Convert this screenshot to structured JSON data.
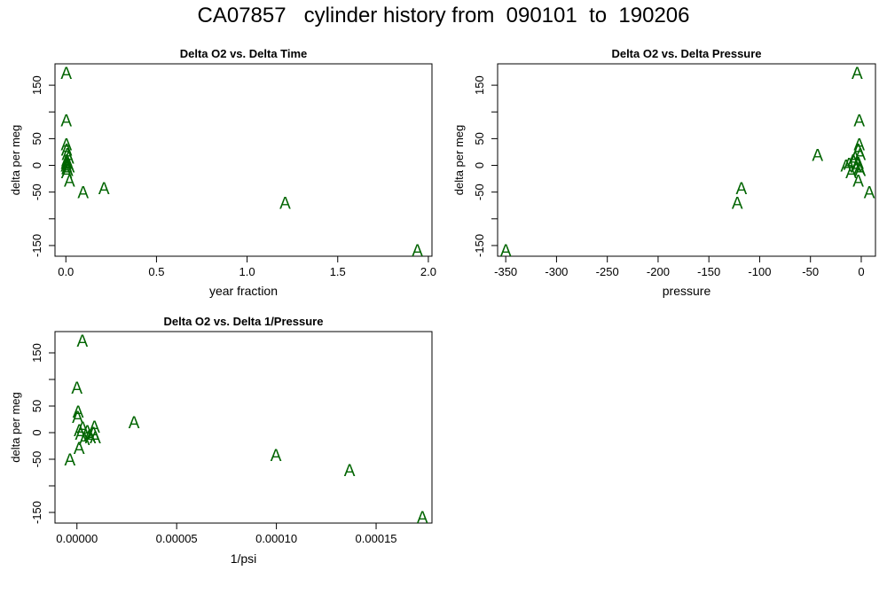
{
  "page": {
    "title": "CA07857   cylinder history from  090101  to  190206"
  },
  "colors": {
    "marker": "#006400",
    "axis": "#000000",
    "background": "#ffffff"
  },
  "chart_data": [
    {
      "type": "scatter",
      "title": "Delta O2 vs. Delta Time",
      "xlabel": "year fraction",
      "ylabel": "delta per meg",
      "marker": "A",
      "xlim": [
        -0.06,
        2.02
      ],
      "ylim": [
        -170,
        190
      ],
      "xticks": [
        0.0,
        0.5,
        1.0,
        1.5,
        2.0
      ],
      "xtick_labels": [
        "0.0",
        "0.5",
        "1.0",
        "1.5",
        "2.0"
      ],
      "yticks": [
        -150,
        -50,
        0,
        50,
        150
      ],
      "ytick_labels": [
        "-150",
        "-50",
        "0",
        "50",
        "150"
      ],
      "ytick_minor": [
        -100,
        100
      ],
      "points": [
        {
          "x": 0.002,
          "y": 173
        },
        {
          "x": 0.002,
          "y": 85
        },
        {
          "x": 0.003,
          "y": 40
        },
        {
          "x": 0.004,
          "y": 30
        },
        {
          "x": 0.008,
          "y": 22
        },
        {
          "x": 0.015,
          "y": 15
        },
        {
          "x": 0.005,
          "y": 10
        },
        {
          "x": 0.003,
          "y": 5
        },
        {
          "x": 0.012,
          "y": 3
        },
        {
          "x": 0.002,
          "y": 0
        },
        {
          "x": 0.018,
          "y": -2
        },
        {
          "x": 0.006,
          "y": -5
        },
        {
          "x": 0.01,
          "y": -8
        },
        {
          "x": 0.004,
          "y": -12
        },
        {
          "x": 0.02,
          "y": -28
        },
        {
          "x": 0.095,
          "y": -50
        },
        {
          "x": 0.21,
          "y": -42
        },
        {
          "x": 1.21,
          "y": -70
        },
        {
          "x": 1.94,
          "y": -158
        }
      ]
    },
    {
      "type": "scatter",
      "title": "Delta O2 vs. Delta Pressure",
      "xlabel": "pressure",
      "ylabel": "delta per meg",
      "marker": "A",
      "xlim": [
        -358,
        14
      ],
      "ylim": [
        -170,
        190
      ],
      "xticks": [
        -350,
        -300,
        -250,
        -200,
        -150,
        -100,
        -50,
        0
      ],
      "xtick_labels": [
        "-350",
        "-300",
        "-250",
        "-200",
        "-150",
        "-100",
        "-50",
        "0"
      ],
      "yticks": [
        -150,
        -50,
        0,
        50,
        150
      ],
      "ytick_labels": [
        "-150",
        "-50",
        "0",
        "50",
        "150"
      ],
      "ytick_minor": [
        -100,
        100
      ],
      "points": [
        {
          "x": -4,
          "y": 173
        },
        {
          "x": -2,
          "y": 85
        },
        {
          "x": -2,
          "y": 40
        },
        {
          "x": -3,
          "y": 30
        },
        {
          "x": -1,
          "y": 22
        },
        {
          "x": -6,
          "y": 15
        },
        {
          "x": -8,
          "y": 10
        },
        {
          "x": -3,
          "y": 5
        },
        {
          "x": -12,
          "y": 3
        },
        {
          "x": -15,
          "y": 0
        },
        {
          "x": -5,
          "y": -2
        },
        {
          "x": -2,
          "y": -5
        },
        {
          "x": -1,
          "y": -8
        },
        {
          "x": -10,
          "y": -12
        },
        {
          "x": -3,
          "y": -28
        },
        {
          "x": 8,
          "y": -50
        },
        {
          "x": -118,
          "y": -42
        },
        {
          "x": -122,
          "y": -70
        },
        {
          "x": -350,
          "y": -158
        },
        {
          "x": -43,
          "y": 20
        }
      ]
    },
    {
      "type": "scatter",
      "title": "Delta O2 vs. Delta 1/Pressure",
      "xlabel": "1/psi",
      "ylabel": "delta per meg",
      "marker": "A",
      "xlim": [
        -1.1e-05,
        0.000178
      ],
      "ylim": [
        -170,
        190
      ],
      "xticks": [
        0.0,
        5e-05,
        0.0001,
        0.00015
      ],
      "xtick_labels": [
        "0.00000",
        "0.00005",
        "0.00010",
        "0.00015"
      ],
      "yticks": [
        -150,
        -50,
        0,
        50,
        150
      ],
      "ytick_labels": [
        "-150",
        "-50",
        "0",
        "50",
        "150"
      ],
      "ytick_minor": [
        -100,
        100
      ],
      "points": [
        {
          "x": 2.7e-06,
          "y": 173
        },
        {
          "x": 0.0,
          "y": 85
        },
        {
          "x": 6e-07,
          "y": 40
        },
        {
          "x": 3e-07,
          "y": 30
        },
        {
          "x": 8.8e-06,
          "y": 12
        },
        {
          "x": 2.9e-06,
          "y": 10
        },
        {
          "x": 1.2e-06,
          "y": 5
        },
        {
          "x": 5.2e-06,
          "y": 3
        },
        {
          "x": 8.3e-06,
          "y": 0
        },
        {
          "x": 1.8e-06,
          "y": -2
        },
        {
          "x": 6.3e-06,
          "y": -5
        },
        {
          "x": 9.2e-06,
          "y": -8
        },
        {
          "x": 3.7e-06,
          "y": -12
        },
        {
          "x": 6.8e-06,
          "y": -8
        },
        {
          "x": 1.1e-06,
          "y": -28
        },
        {
          "x": -3.5e-06,
          "y": -50
        },
        {
          "x": 2.86e-05,
          "y": 20
        },
        {
          "x": 9.98e-05,
          "y": -42
        },
        {
          "x": 0.0001367,
          "y": -70
        },
        {
          "x": 0.0001732,
          "y": -158
        }
      ]
    }
  ]
}
